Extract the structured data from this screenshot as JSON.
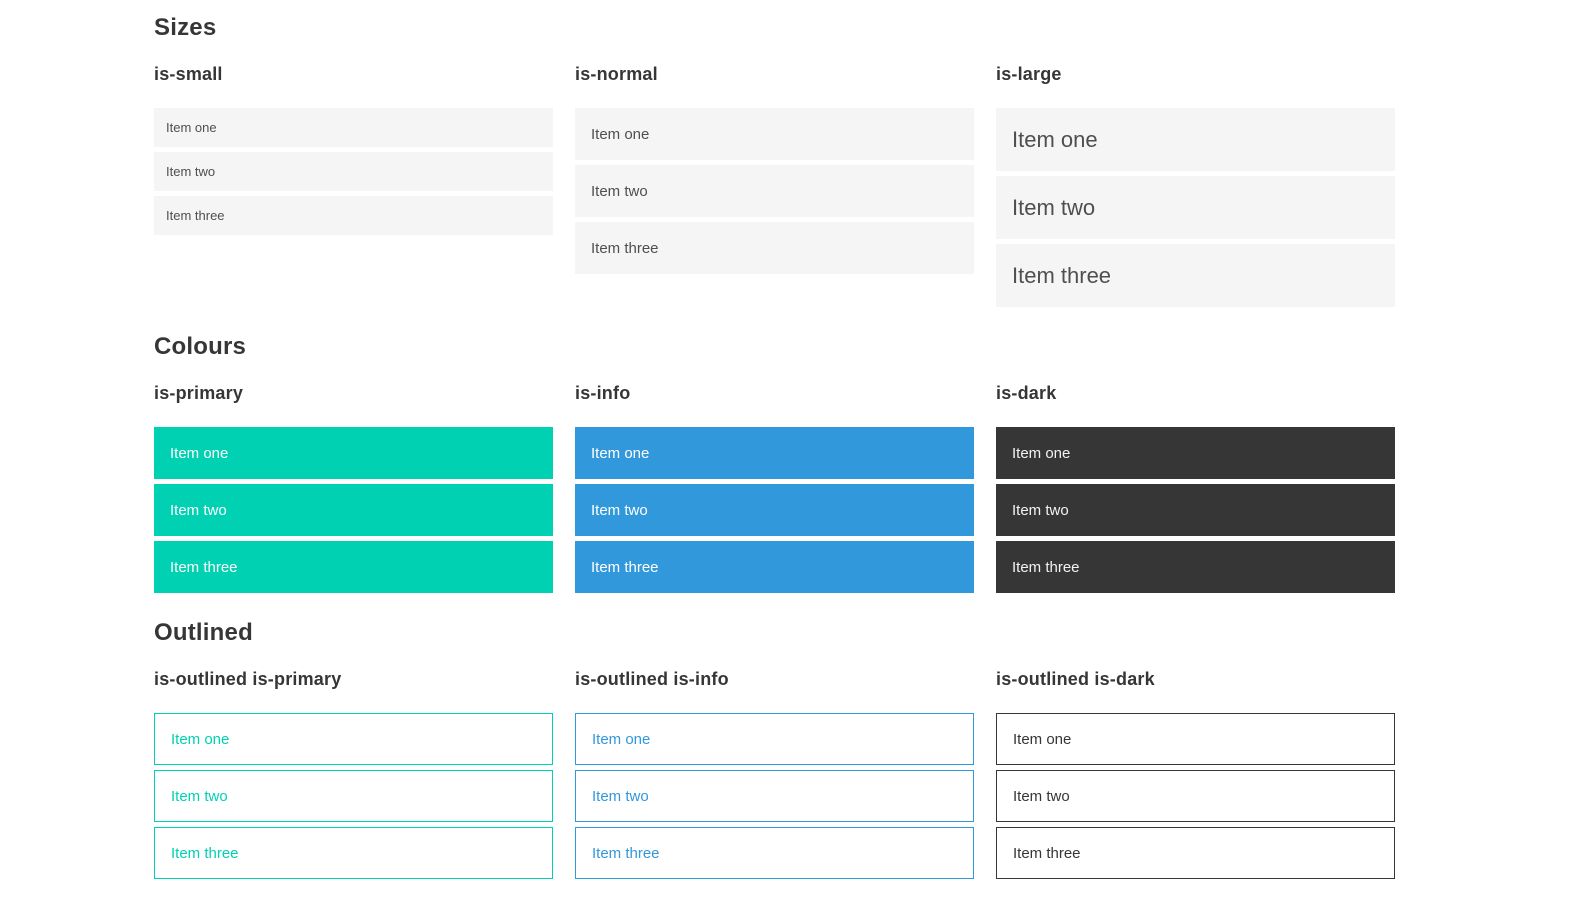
{
  "colors": {
    "primary": "#00d1b2",
    "info": "#3298dc",
    "dark": "#363636",
    "light_bg": "#f5f5f5",
    "heading": "#363636",
    "text": "#4f4f4f"
  },
  "sections": [
    {
      "title": "Sizes",
      "columns": [
        {
          "header": "is-small",
          "items": [
            "Item one",
            "Item two",
            "Item three"
          ]
        },
        {
          "header": "is-normal",
          "items": [
            "Item one",
            "Item two",
            "Item three"
          ]
        },
        {
          "header": "is-large",
          "items": [
            "Item one",
            "Item two",
            "Item three"
          ]
        }
      ]
    },
    {
      "title": "Colours",
      "columns": [
        {
          "header": "is-primary",
          "items": [
            "Item one",
            "Item two",
            "Item three"
          ]
        },
        {
          "header": "is-info",
          "items": [
            "Item one",
            "Item two",
            "Item three"
          ]
        },
        {
          "header": "is-dark",
          "items": [
            "Item one",
            "Item two",
            "Item three"
          ]
        }
      ]
    },
    {
      "title": "Outlined",
      "columns": [
        {
          "header": "is-outlined is-primary",
          "items": [
            "Item one",
            "Item two",
            "Item three"
          ]
        },
        {
          "header": "is-outlined is-info",
          "items": [
            "Item one",
            "Item two",
            "Item three"
          ]
        },
        {
          "header": "is-outlined is-dark",
          "items": [
            "Item one",
            "Item two",
            "Item three"
          ]
        }
      ]
    }
  ]
}
